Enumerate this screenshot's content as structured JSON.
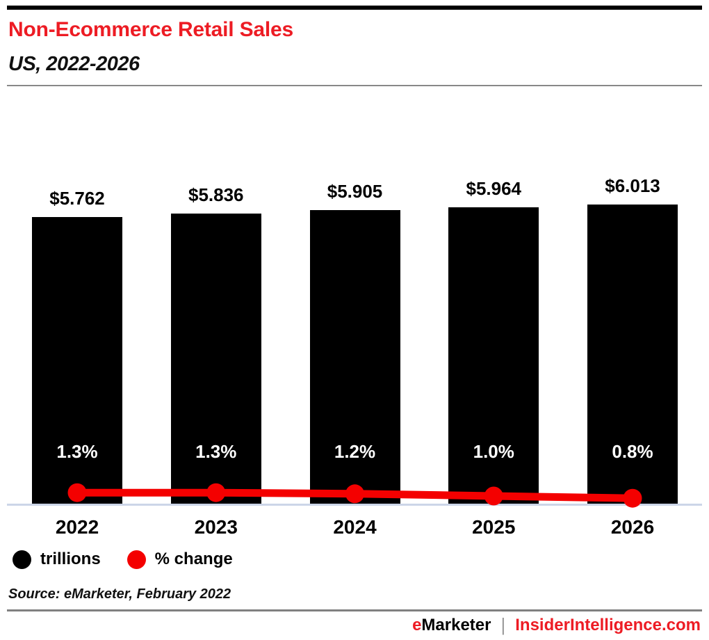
{
  "page": {
    "title": "Non-Ecommerce Retail Sales",
    "subtitle": "US, 2022-2026",
    "source": "Source: eMarketer, February 2022",
    "footer": {
      "brand_prefix": "e",
      "brand_rest": "Marketer",
      "separator": "|",
      "site": "InsiderIntelligence.com"
    }
  },
  "legend": [
    {
      "label": "trillions",
      "color": "#000000"
    },
    {
      "label": "% change",
      "color": "#f40000"
    }
  ],
  "colors": {
    "accent_red": "#ed1c24",
    "line_red": "#f40000",
    "bar_black": "#000000",
    "axis_line": "#ccd5e8",
    "divider_gray": "#888888"
  },
  "chart_data": {
    "type": "bar",
    "title": "Non-Ecommerce Retail Sales",
    "subtitle": "US, 2022-2026",
    "categories": [
      "2022",
      "2023",
      "2024",
      "2025",
      "2026"
    ],
    "series": [
      {
        "name": "trillions",
        "type": "bar",
        "unit": "USD trillions",
        "values": [
          5.762,
          5.836,
          5.905,
          5.964,
          6.013
        ],
        "labels": [
          "$5.762",
          "$5.836",
          "$5.905",
          "$5.964",
          "$6.013"
        ],
        "color": "#000000"
      },
      {
        "name": "% change",
        "type": "line",
        "unit": "percent",
        "values": [
          1.3,
          1.3,
          1.2,
          1.0,
          0.8
        ],
        "labels": [
          "1.3%",
          "1.3%",
          "1.2%",
          "1.0%",
          "0.8%"
        ],
        "color": "#f40000"
      }
    ],
    "ylim": [
      0,
      6.5
    ],
    "grid": false,
    "legend_position": "bottom",
    "source": "Source: eMarketer, February 2022"
  }
}
